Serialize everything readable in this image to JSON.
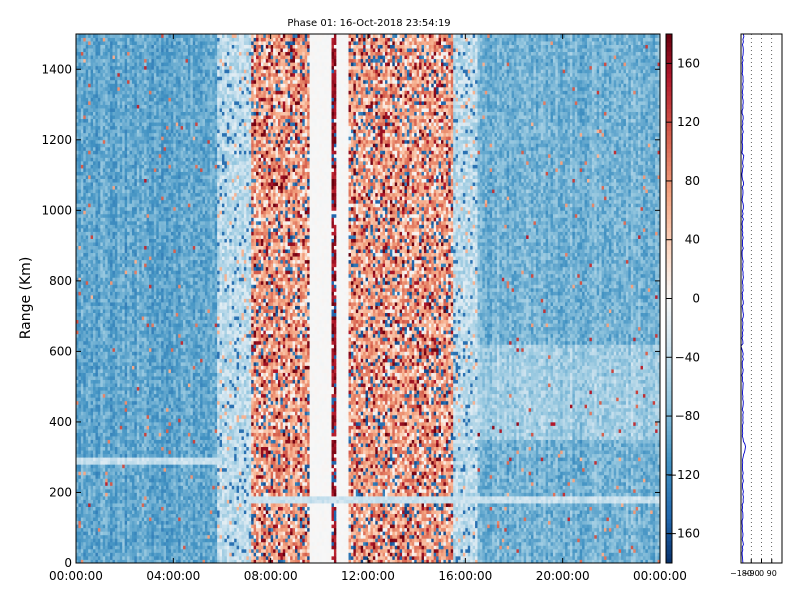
{
  "chart_data": [
    {
      "type": "heatmap",
      "title": "Phase 01: 16-Oct-2018 23:54:19",
      "xlabel": "",
      "ylabel": "Range (Km)",
      "x_ticks": [
        "00:00:00",
        "04:00:00",
        "08:00:00",
        "12:00:00",
        "16:00:00",
        "20:00:00",
        "00:00:00"
      ],
      "x_tick_hours": [
        0,
        4,
        8,
        12,
        16,
        20,
        24
      ],
      "y_ticks": [
        0,
        200,
        400,
        600,
        800,
        1000,
        1200,
        1400
      ],
      "xlim_hours": [
        0,
        24
      ],
      "ylim": [
        0,
        1500
      ],
      "colorbar": {
        "ticks": [
          160,
          120,
          80,
          40,
          0,
          -40,
          -80,
          -120,
          -160
        ],
        "range": [
          -180,
          180
        ],
        "colormap": "RdBu_r",
        "colors": {
          "low": "#08306b",
          "mid": "#f7f7f7",
          "high": "#67000d"
        }
      },
      "phase_regimes": [
        {
          "from_h": 0.0,
          "to_h": 5.8,
          "phase": "blue",
          "mean": -95
        },
        {
          "from_h": 5.8,
          "to_h": 7.2,
          "phase": "transition",
          "mean": -40
        },
        {
          "from_h": 7.2,
          "to_h": 9.6,
          "phase": "mixed-red",
          "mean": 60
        },
        {
          "from_h": 9.6,
          "to_h": 10.5,
          "phase": "white-band",
          "mean": 0
        },
        {
          "from_h": 10.5,
          "to_h": 10.75,
          "phase": "dark-red-column",
          "mean": 150
        },
        {
          "from_h": 10.75,
          "to_h": 11.2,
          "phase": "white-band",
          "mean": 0
        },
        {
          "from_h": 11.2,
          "to_h": 15.5,
          "phase": "mixed-red",
          "mean": 60
        },
        {
          "from_h": 15.5,
          "to_h": 16.5,
          "phase": "transition",
          "mean": -40
        },
        {
          "from_h": 16.5,
          "to_h": 24.0,
          "phase": "blue",
          "mean": -85
        }
      ],
      "features": [
        {
          "kind": "horizontal-band",
          "range_km": 180,
          "from_h": 7.0,
          "to_h": 24.0
        },
        {
          "kind": "horizontal-band",
          "range_km": 290,
          "from_h": 0.0,
          "to_h": 6.0
        }
      ]
    },
    {
      "type": "line",
      "title": "",
      "x_ticks": [
        "−180",
        "−90",
        "0",
        "90"
      ],
      "x_tick_values": [
        -180,
        -90,
        0,
        90
      ],
      "xlim": [
        -180,
        180
      ],
      "ylim": [
        0,
        1500
      ],
      "series_color": "#0000cc",
      "profile_mean": -165,
      "kink_at_km": 330
    }
  ]
}
